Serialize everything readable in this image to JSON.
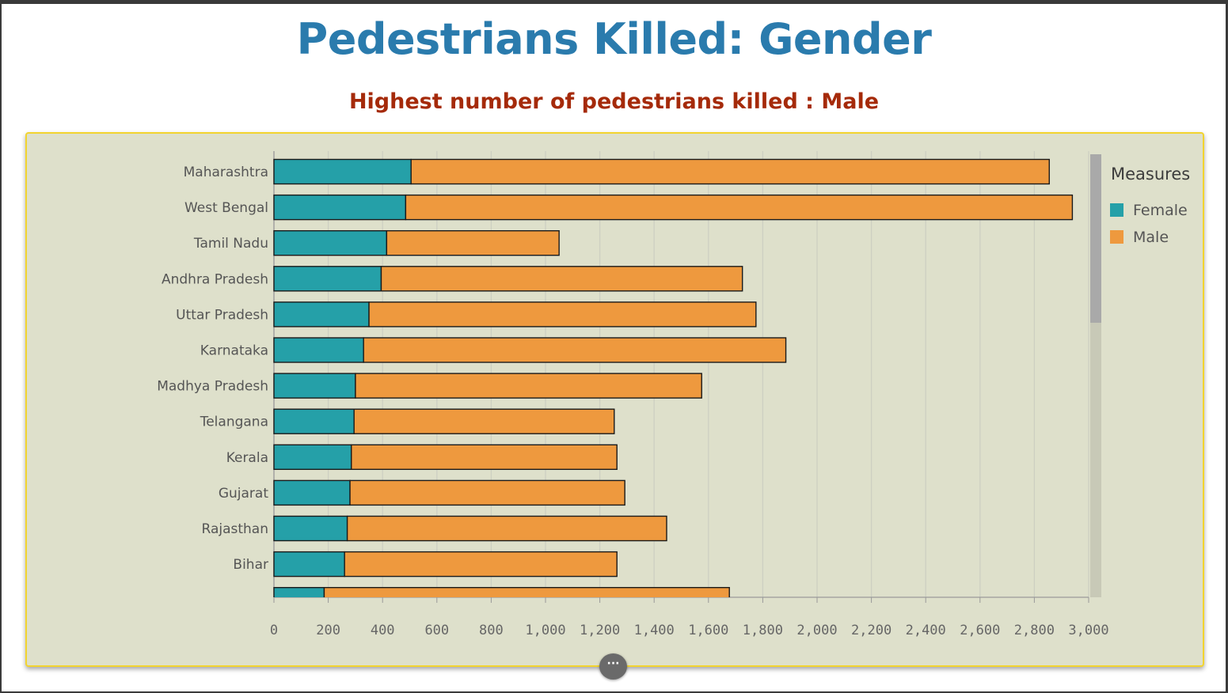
{
  "title": "Pedestrians Killed: Gender",
  "subtitle": "Highest number of pedestrians killed : Male",
  "more_button": "···",
  "chart_data": {
    "type": "bar",
    "orientation": "horizontal",
    "stacked": true,
    "categories": [
      "Maharashtra",
      "West Bengal",
      "Tamil Nadu",
      "Andhra Pradesh",
      "Uttar Pradesh",
      "Karnataka",
      "Madhya Pradesh",
      "Telangana",
      "Kerala",
      "Gujarat",
      "Rajasthan",
      "Bihar",
      ""
    ],
    "series": [
      {
        "name": "Female",
        "color": "#25a0a8",
        "values": [
          505,
          485,
          415,
          395,
          350,
          330,
          300,
          295,
          285,
          280,
          270,
          260,
          185
        ]
      },
      {
        "name": "Male",
        "color": "#ee993e",
        "values": [
          2350,
          2455,
          635,
          1330,
          1425,
          1555,
          1275,
          958,
          978,
          1012,
          1176,
          1003,
          1492
        ]
      }
    ],
    "xlim": [
      0,
      3000
    ],
    "xticks": [
      "0",
      "200",
      "400",
      "600",
      "800",
      "1,000",
      "1,200",
      "1,400",
      "1,600",
      "1,800",
      "2,000",
      "2,200",
      "2,400",
      "2,600",
      "2,800",
      "3,000"
    ],
    "xtick_values": [
      0,
      200,
      400,
      600,
      800,
      1000,
      1200,
      1400,
      1600,
      1800,
      2000,
      2200,
      2400,
      2600,
      2800,
      3000
    ],
    "grid": "vertical",
    "legend": {
      "title": "Measures",
      "position": "right"
    },
    "colors": {
      "background": "#dee0cb",
      "border": "#f2d42f",
      "title": "#2a7bad",
      "subtitle": "#a52a0a"
    }
  }
}
